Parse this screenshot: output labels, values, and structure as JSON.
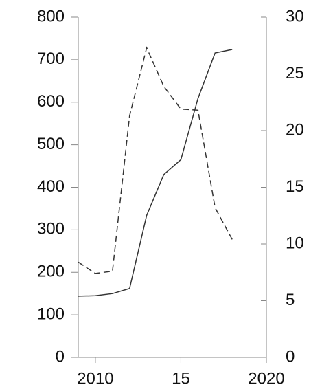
{
  "chart_data": {
    "type": "line",
    "x": [
      2009,
      2010,
      2011,
      2012,
      2013,
      2014,
      2015,
      2016,
      2017,
      2018
    ],
    "series": [
      {
        "color": "#333333",
        "line_style": "solid",
        "values": [
          144,
          145,
          150,
          162,
          334,
          430,
          465,
          609,
          716,
          724
        ]
      },
      {
        "color": "#333333",
        "line_style": "dashed",
        "axis": "y2",
        "values": [
          8.4,
          7.4,
          7.6,
          21.3,
          27.3,
          23.9,
          21.9,
          21.8,
          13.2,
          10.4
        ]
      }
    ],
    "xlim": [
      2009,
      2020
    ],
    "xticks": [
      2010,
      {
        "value": 2015,
        "label": "15"
      },
      2020
    ],
    "ylim": [
      0,
      800
    ],
    "yticks": [
      0,
      100,
      200,
      300,
      400,
      500,
      600,
      700,
      800
    ],
    "y2lim": [
      0,
      30
    ],
    "y2ticks": [
      0,
      5,
      10,
      15,
      20,
      25,
      30
    ]
  }
}
